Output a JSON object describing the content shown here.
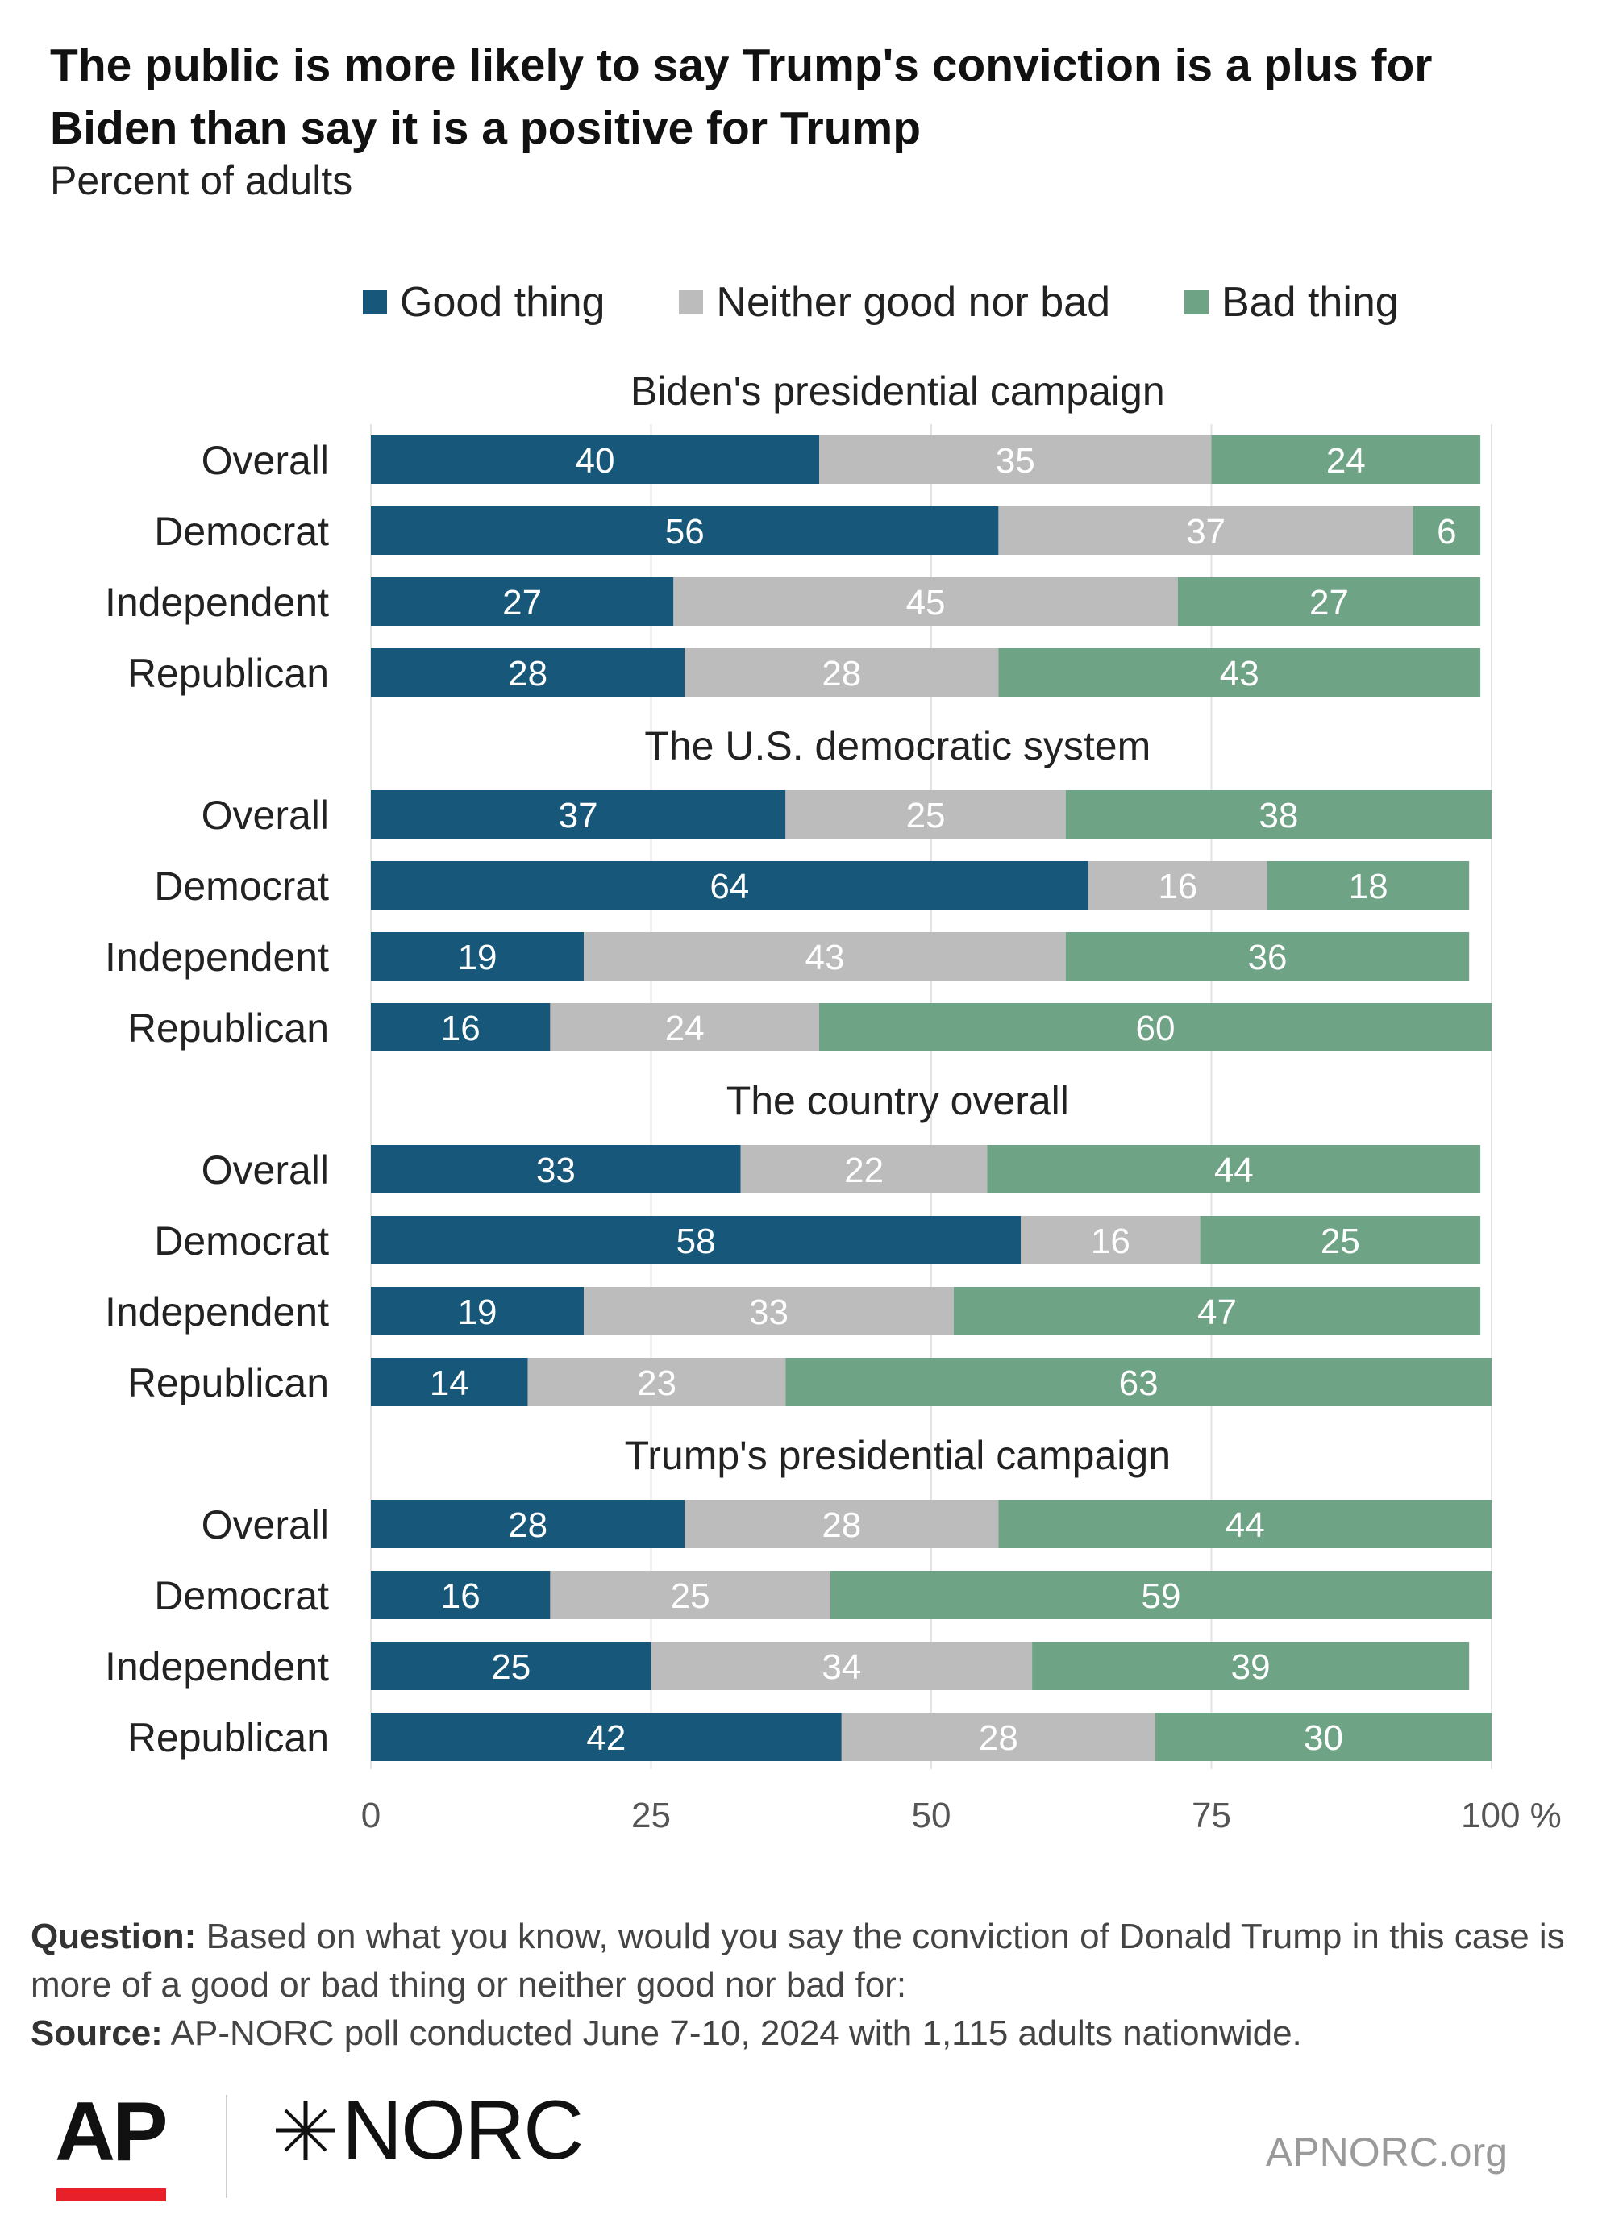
{
  "title": "The public is more likely to say Trump's conviction is a plus for Biden than say it is a positive for Trump",
  "subtitle": "Percent of adults",
  "colors": {
    "good": "#17587a",
    "neither": "#bcbcbc",
    "bad": "#6fa385"
  },
  "legend": [
    {
      "key": "good",
      "label": "Good thing"
    },
    {
      "key": "neither",
      "label": "Neither good nor bad"
    },
    {
      "key": "bad",
      "label": "Bad thing"
    }
  ],
  "chart_data": {
    "type": "bar",
    "orientation": "horizontal",
    "stacked": true,
    "series_names": [
      "Good thing",
      "Neither good nor bad",
      "Bad thing"
    ],
    "x_ticks": [
      "0",
      "25",
      "50",
      "75",
      "100 %"
    ],
    "xlim": [
      0,
      100
    ],
    "grid": true,
    "legend_position": "top",
    "groups": [
      {
        "title": "Biden's presidential campaign",
        "rows": [
          {
            "label": "Overall",
            "values": [
              40,
              35,
              24
            ]
          },
          {
            "label": "Democrat",
            "values": [
              56,
              37,
              6
            ]
          },
          {
            "label": "Independent",
            "values": [
              27,
              45,
              27
            ]
          },
          {
            "label": "Republican",
            "values": [
              28,
              28,
              43
            ]
          }
        ]
      },
      {
        "title": "The U.S. democratic system",
        "rows": [
          {
            "label": "Overall",
            "values": [
              37,
              25,
              38
            ]
          },
          {
            "label": "Democrat",
            "values": [
              64,
              16,
              18
            ]
          },
          {
            "label": "Independent",
            "values": [
              19,
              43,
              36
            ]
          },
          {
            "label": "Republican",
            "values": [
              16,
              24,
              60
            ]
          }
        ]
      },
      {
        "title": "The country overall",
        "rows": [
          {
            "label": "Overall",
            "values": [
              33,
              22,
              44
            ]
          },
          {
            "label": "Democrat",
            "values": [
              58,
              16,
              25
            ]
          },
          {
            "label": "Independent",
            "values": [
              19,
              33,
              47
            ]
          },
          {
            "label": "Republican",
            "values": [
              14,
              23,
              63
            ]
          }
        ]
      },
      {
        "title": "Trump's presidential campaign",
        "rows": [
          {
            "label": "Overall",
            "values": [
              28,
              28,
              44
            ]
          },
          {
            "label": "Democrat",
            "values": [
              16,
              25,
              59
            ]
          },
          {
            "label": "Independent",
            "values": [
              25,
              34,
              39
            ]
          },
          {
            "label": "Republican",
            "values": [
              42,
              28,
              30
            ]
          }
        ]
      }
    ]
  },
  "footer": {
    "question_label": "Question:",
    "question_text": "Based on what you know, would you say the conviction of Donald Trump in this case is more of a good or bad thing or neither good nor bad for:",
    "source_label": "Source:",
    "source_text": "AP-NORC poll conducted June 7-10, 2024 with 1,115 adults nationwide.",
    "logo_ap": "AP",
    "logo_norc": "NORC",
    "site": "APNORC.org"
  }
}
